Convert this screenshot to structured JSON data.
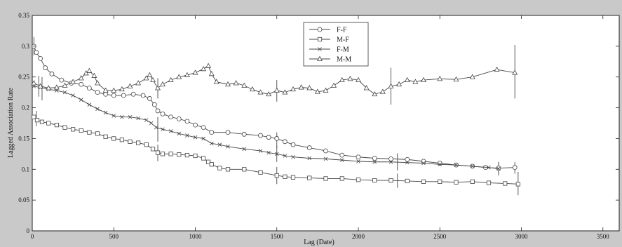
{
  "chart_data": {
    "type": "line",
    "title": "",
    "xlabel": "Lag (Date)",
    "ylabel": "Lagged Association Rate",
    "xlim": [
      0,
      3600
    ],
    "ylim": [
      0,
      0.35
    ],
    "x_ticks": [
      "0",
      "500",
      "1000",
      "1500",
      "2000",
      "2500",
      "3000",
      "3500"
    ],
    "y_ticks": [
      "0",
      "0.05",
      "0.1",
      "0.15",
      "0.2",
      "0.25",
      "0.3",
      "0.35"
    ],
    "grid": false,
    "legend_position": "top-center",
    "colors": {
      "line": "#444444",
      "background": "#ffffff",
      "page": "#c9c9c9"
    },
    "series": [
      {
        "name": "F-F",
        "marker": "circle",
        "points": [
          [
            10,
            0.3
          ],
          [
            25,
            0.29
          ],
          [
            50,
            0.28
          ],
          [
            80,
            0.265
          ],
          [
            120,
            0.255
          ],
          [
            180,
            0.245
          ],
          [
            240,
            0.24
          ],
          [
            300,
            0.238
          ],
          [
            350,
            0.232
          ],
          [
            400,
            0.225
          ],
          [
            450,
            0.222
          ],
          [
            500,
            0.22
          ],
          [
            560,
            0.22
          ],
          [
            620,
            0.222
          ],
          [
            680,
            0.22
          ],
          [
            720,
            0.215
          ],
          [
            750,
            0.205
          ],
          [
            770,
            0.195
          ],
          [
            800,
            0.19
          ],
          [
            850,
            0.185
          ],
          [
            900,
            0.182
          ],
          [
            950,
            0.178
          ],
          [
            1000,
            0.172
          ],
          [
            1050,
            0.168
          ],
          [
            1100,
            0.16
          ],
          [
            1200,
            0.16
          ],
          [
            1300,
            0.157
          ],
          [
            1400,
            0.155
          ],
          [
            1450,
            0.152
          ],
          [
            1500,
            0.15
          ],
          [
            1550,
            0.145
          ],
          [
            1600,
            0.14
          ],
          [
            1700,
            0.135
          ],
          [
            1800,
            0.13
          ],
          [
            1900,
            0.123
          ],
          [
            2000,
            0.12
          ],
          [
            2100,
            0.118
          ],
          [
            2200,
            0.117
          ],
          [
            2300,
            0.116
          ],
          [
            2400,
            0.113
          ],
          [
            2500,
            0.11
          ],
          [
            2600,
            0.107
          ],
          [
            2700,
            0.105
          ],
          [
            2780,
            0.103
          ],
          [
            2860,
            0.102
          ],
          [
            2960,
            0.103
          ]
        ]
      },
      {
        "name": "M-F",
        "marker": "square",
        "points": [
          [
            10,
            0.185
          ],
          [
            30,
            0.18
          ],
          [
            60,
            0.177
          ],
          [
            100,
            0.175
          ],
          [
            150,
            0.172
          ],
          [
            200,
            0.168
          ],
          [
            250,
            0.165
          ],
          [
            300,
            0.163
          ],
          [
            350,
            0.16
          ],
          [
            400,
            0.158
          ],
          [
            450,
            0.153
          ],
          [
            500,
            0.15
          ],
          [
            550,
            0.148
          ],
          [
            600,
            0.145
          ],
          [
            650,
            0.143
          ],
          [
            700,
            0.14
          ],
          [
            740,
            0.133
          ],
          [
            770,
            0.127
          ],
          [
            800,
            0.125
          ],
          [
            850,
            0.125
          ],
          [
            900,
            0.124
          ],
          [
            950,
            0.123
          ],
          [
            1000,
            0.122
          ],
          [
            1050,
            0.118
          ],
          [
            1080,
            0.112
          ],
          [
            1100,
            0.108
          ],
          [
            1150,
            0.102
          ],
          [
            1200,
            0.1
          ],
          [
            1300,
            0.1
          ],
          [
            1400,
            0.095
          ],
          [
            1500,
            0.09
          ],
          [
            1550,
            0.088
          ],
          [
            1600,
            0.087
          ],
          [
            1700,
            0.086
          ],
          [
            1800,
            0.085
          ],
          [
            1900,
            0.085
          ],
          [
            2000,
            0.083
          ],
          [
            2100,
            0.082
          ],
          [
            2200,
            0.082
          ],
          [
            2300,
            0.081
          ],
          [
            2400,
            0.08
          ],
          [
            2500,
            0.08
          ],
          [
            2600,
            0.079
          ],
          [
            2700,
            0.08
          ],
          [
            2800,
            0.078
          ],
          [
            2900,
            0.077
          ],
          [
            2980,
            0.076
          ]
        ]
      },
      {
        "name": "F-M",
        "marker": "x",
        "points": [
          [
            10,
            0.235
          ],
          [
            50,
            0.233
          ],
          [
            100,
            0.23
          ],
          [
            150,
            0.228
          ],
          [
            200,
            0.225
          ],
          [
            250,
            0.22
          ],
          [
            300,
            0.213
          ],
          [
            350,
            0.205
          ],
          [
            400,
            0.198
          ],
          [
            450,
            0.192
          ],
          [
            500,
            0.187
          ],
          [
            550,
            0.185
          ],
          [
            600,
            0.185
          ],
          [
            650,
            0.183
          ],
          [
            700,
            0.18
          ],
          [
            730,
            0.175
          ],
          [
            760,
            0.168
          ],
          [
            800,
            0.165
          ],
          [
            850,
            0.162
          ],
          [
            900,
            0.158
          ],
          [
            950,
            0.155
          ],
          [
            1000,
            0.152
          ],
          [
            1050,
            0.15
          ],
          [
            1100,
            0.142
          ],
          [
            1150,
            0.14
          ],
          [
            1200,
            0.137
          ],
          [
            1300,
            0.133
          ],
          [
            1400,
            0.13
          ],
          [
            1450,
            0.127
          ],
          [
            1500,
            0.125
          ],
          [
            1550,
            0.122
          ],
          [
            1600,
            0.12
          ],
          [
            1700,
            0.118
          ],
          [
            1800,
            0.117
          ],
          [
            1900,
            0.115
          ],
          [
            2000,
            0.113
          ],
          [
            2100,
            0.112
          ],
          [
            2200,
            0.112
          ],
          [
            2300,
            0.111
          ],
          [
            2400,
            0.11
          ],
          [
            2500,
            0.108
          ],
          [
            2600,
            0.107
          ],
          [
            2700,
            0.105
          ],
          [
            2800,
            0.103
          ],
          [
            2860,
            0.101
          ]
        ]
      },
      {
        "name": "M-M",
        "marker": "triangle",
        "points": [
          [
            10,
            0.24
          ],
          [
            50,
            0.235
          ],
          [
            100,
            0.232
          ],
          [
            150,
            0.233
          ],
          [
            200,
            0.236
          ],
          [
            250,
            0.242
          ],
          [
            300,
            0.248
          ],
          [
            330,
            0.256
          ],
          [
            350,
            0.26
          ],
          [
            380,
            0.252
          ],
          [
            400,
            0.24
          ],
          [
            450,
            0.228
          ],
          [
            500,
            0.228
          ],
          [
            550,
            0.23
          ],
          [
            600,
            0.235
          ],
          [
            650,
            0.24
          ],
          [
            700,
            0.248
          ],
          [
            720,
            0.253
          ],
          [
            740,
            0.245
          ],
          [
            770,
            0.232
          ],
          [
            800,
            0.238
          ],
          [
            850,
            0.245
          ],
          [
            900,
            0.25
          ],
          [
            950,
            0.253
          ],
          [
            1000,
            0.257
          ],
          [
            1050,
            0.263
          ],
          [
            1080,
            0.268
          ],
          [
            1100,
            0.255
          ],
          [
            1130,
            0.242
          ],
          [
            1200,
            0.238
          ],
          [
            1250,
            0.24
          ],
          [
            1300,
            0.236
          ],
          [
            1350,
            0.23
          ],
          [
            1400,
            0.225
          ],
          [
            1450,
            0.222
          ],
          [
            1500,
            0.228
          ],
          [
            1550,
            0.225
          ],
          [
            1600,
            0.23
          ],
          [
            1650,
            0.233
          ],
          [
            1700,
            0.232
          ],
          [
            1750,
            0.226
          ],
          [
            1800,
            0.228
          ],
          [
            1850,
            0.236
          ],
          [
            1900,
            0.245
          ],
          [
            1950,
            0.247
          ],
          [
            2000,
            0.245
          ],
          [
            2050,
            0.232
          ],
          [
            2100,
            0.222
          ],
          [
            2150,
            0.226
          ],
          [
            2200,
            0.235
          ],
          [
            2250,
            0.238
          ],
          [
            2300,
            0.245
          ],
          [
            2350,
            0.242
          ],
          [
            2400,
            0.245
          ],
          [
            2500,
            0.247
          ],
          [
            2600,
            0.246
          ],
          [
            2700,
            0.25
          ],
          [
            2850,
            0.262
          ],
          [
            2960,
            0.257
          ]
        ]
      }
    ],
    "error_bars": [
      {
        "series": "F-F",
        "x": 10,
        "y": 0.3,
        "low": 0.285,
        "high": 0.315
      },
      {
        "series": "M-F",
        "x": 25,
        "y": 0.182,
        "low": 0.17,
        "high": 0.195
      },
      {
        "series": "F-M",
        "x": 60,
        "y": 0.232,
        "low": 0.212,
        "high": 0.25
      },
      {
        "series": "M-M",
        "x": 40,
        "y": 0.236,
        "low": 0.218,
        "high": 0.252
      },
      {
        "series": "F-M",
        "x": 770,
        "y": 0.165,
        "low": 0.145,
        "high": 0.185
      },
      {
        "series": "M-F",
        "x": 770,
        "y": 0.127,
        "low": 0.113,
        "high": 0.14
      },
      {
        "series": "M-M",
        "x": 770,
        "y": 0.232,
        "low": 0.215,
        "high": 0.248
      },
      {
        "series": "F-F",
        "x": 1500,
        "y": 0.148,
        "low": 0.135,
        "high": 0.16
      },
      {
        "series": "M-F",
        "x": 1500,
        "y": 0.09,
        "low": 0.076,
        "high": 0.104
      },
      {
        "series": "F-M",
        "x": 1500,
        "y": 0.125,
        "low": 0.112,
        "high": 0.138
      },
      {
        "series": "M-M",
        "x": 1500,
        "y": 0.228,
        "low": 0.21,
        "high": 0.245
      },
      {
        "series": "M-F",
        "x": 2240,
        "y": 0.082,
        "low": 0.07,
        "high": 0.093
      },
      {
        "series": "F-M",
        "x": 2240,
        "y": 0.112,
        "low": 0.098,
        "high": 0.126
      },
      {
        "series": "M-M",
        "x": 2200,
        "y": 0.235,
        "low": 0.205,
        "high": 0.265
      },
      {
        "series": "F-F",
        "x": 2860,
        "y": 0.102,
        "low": 0.093,
        "high": 0.112
      },
      {
        "series": "F-M",
        "x": 2860,
        "y": 0.101,
        "low": 0.09,
        "high": 0.112
      },
      {
        "series": "F-F",
        "x": 2960,
        "y": 0.103,
        "low": 0.093,
        "high": 0.112
      },
      {
        "series": "M-M",
        "x": 2960,
        "y": 0.257,
        "low": 0.215,
        "high": 0.302
      },
      {
        "series": "M-F",
        "x": 2980,
        "y": 0.076,
        "low": 0.058,
        "high": 0.096
      }
    ]
  }
}
